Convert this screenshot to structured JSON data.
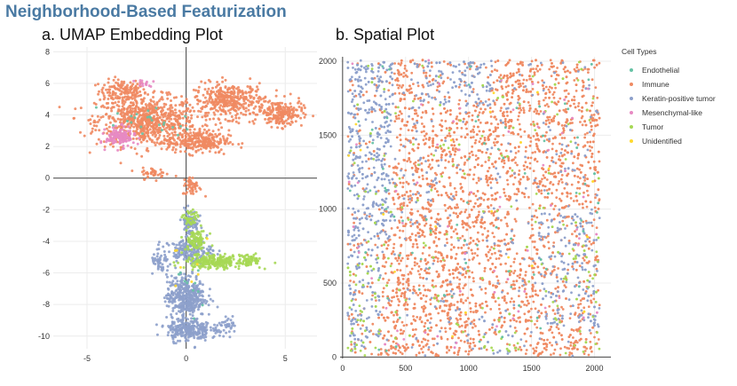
{
  "page": {
    "title": "Neighborhood-Based Featurization"
  },
  "chart_data": [
    {
      "type": "scatter",
      "title": "a. UMAP Embedding Plot",
      "xlabel": "",
      "ylabel": "",
      "xlim": [
        -6.7,
        6.6
      ],
      "ylim": [
        -10.8,
        8.3
      ],
      "xticks": [
        -5,
        0,
        5
      ],
      "yticks": [
        -10,
        -8,
        -6,
        -4,
        -2,
        0,
        2,
        4,
        6,
        8
      ],
      "grid": true,
      "zero_lines": true,
      "series": [
        {
          "name": "Immune",
          "color": "#ef8a62",
          "regions": [
            {
              "cx": -3.2,
              "cy": 5.5,
              "sx": 1.0,
              "sy": 0.6,
              "n": 150
            },
            {
              "cx": -2.0,
              "cy": 3.6,
              "sx": 2.1,
              "sy": 1.3,
              "n": 750
            },
            {
              "cx": 2.2,
              "cy": 4.9,
              "sx": 1.5,
              "sy": 0.9,
              "n": 380
            },
            {
              "cx": 4.8,
              "cy": 4.1,
              "sx": 0.9,
              "sy": 0.7,
              "n": 200
            },
            {
              "cx": 0.6,
              "cy": 2.3,
              "sx": 1.3,
              "sy": 0.6,
              "n": 260
            },
            {
              "cx": -1.6,
              "cy": 0.3,
              "sx": 0.5,
              "sy": 0.3,
              "n": 40
            },
            {
              "cx": 0.3,
              "cy": -0.5,
              "sx": 0.4,
              "sy": 0.5,
              "n": 50
            }
          ]
        },
        {
          "name": "Keratin-positive tumor",
          "color": "#8da0cb",
          "regions": [
            {
              "cx": 0.2,
              "cy": -2.8,
              "sx": 0.35,
              "sy": 0.7,
              "n": 90
            },
            {
              "cx": 0.1,
              "cy": -4.6,
              "sx": 1.0,
              "sy": 0.6,
              "n": 180
            },
            {
              "cx": 0.0,
              "cy": -7.5,
              "sx": 0.8,
              "sy": 1.1,
              "n": 420
            },
            {
              "cx": 0.1,
              "cy": -9.6,
              "sx": 0.9,
              "sy": 0.6,
              "n": 260
            },
            {
              "cx": 2.1,
              "cy": -9.4,
              "sx": 0.5,
              "sy": 0.4,
              "n": 45
            },
            {
              "cx": -1.3,
              "cy": -5.4,
              "sx": 0.4,
              "sy": 0.6,
              "n": 40
            }
          ]
        },
        {
          "name": "Tumor",
          "color": "#a6d854",
          "regions": [
            {
              "cx": 1.4,
              "cy": -5.3,
              "sx": 1.2,
              "sy": 0.35,
              "n": 240
            },
            {
              "cx": 0.5,
              "cy": -4.0,
              "sx": 0.5,
              "sy": 0.6,
              "n": 90
            },
            {
              "cx": 0.2,
              "cy": -2.6,
              "sx": 0.3,
              "sy": 0.5,
              "n": 40
            },
            {
              "cx": 3.2,
              "cy": -5.2,
              "sx": 0.5,
              "sy": 0.3,
              "n": 60
            }
          ]
        },
        {
          "name": "Mesenchymal-like",
          "color": "#e78ac3",
          "regions": [
            {
              "cx": -3.3,
              "cy": 2.6,
              "sx": 0.6,
              "sy": 0.5,
              "n": 140
            },
            {
              "cx": -2.1,
              "cy": 6.0,
              "sx": 0.4,
              "sy": 0.2,
              "n": 15
            }
          ]
        },
        {
          "name": "Endothelial",
          "color": "#66c2a5",
          "regions": [
            {
              "cx": -2.0,
              "cy": 3.5,
              "sx": 2.0,
              "sy": 1.2,
              "n": 25
            },
            {
              "cx": 0.0,
              "cy": -7.0,
              "sx": 0.6,
              "sy": 1.5,
              "n": 10
            }
          ]
        },
        {
          "name": "Unidentified",
          "color": "#ffd92f",
          "regions": [
            {
              "cx": 0.3,
              "cy": -6.0,
              "sx": 1.0,
              "sy": 2.0,
              "n": 8
            }
          ]
        }
      ]
    },
    {
      "type": "scatter",
      "title": "b. Spatial Plot",
      "xlabel": "",
      "ylabel": "",
      "xlim": [
        -20,
        2130
      ],
      "ylim": [
        -10,
        2030
      ],
      "xticks": [
        0,
        500,
        1000,
        1500,
        2000
      ],
      "yticks": [
        0,
        500,
        1000,
        1500,
        2000
      ],
      "grid": true,
      "series": [
        {
          "name": "Immune",
          "color": "#ef8a62"
        },
        {
          "name": "Keratin-positive tumor",
          "color": "#8da0cb"
        },
        {
          "name": "Tumor",
          "color": "#a6d854"
        },
        {
          "name": "Mesenchymal-like",
          "color": "#e78ac3"
        },
        {
          "name": "Endothelial",
          "color": "#66c2a5"
        },
        {
          "name": "Unidentified",
          "color": "#ffd92f"
        }
      ]
    }
  ],
  "legend": {
    "title": "Cell Types",
    "items": [
      {
        "label": "Endothelial",
        "color": "#66c2a5"
      },
      {
        "label": "Immune",
        "color": "#ef8a62"
      },
      {
        "label": "Keratin-positive tumor",
        "color": "#8da0cb"
      },
      {
        "label": "Mesenchymal-like",
        "color": "#e78ac3"
      },
      {
        "label": "Tumor",
        "color": "#a6d854"
      },
      {
        "label": "Unidentified",
        "color": "#ffd92f"
      }
    ]
  }
}
